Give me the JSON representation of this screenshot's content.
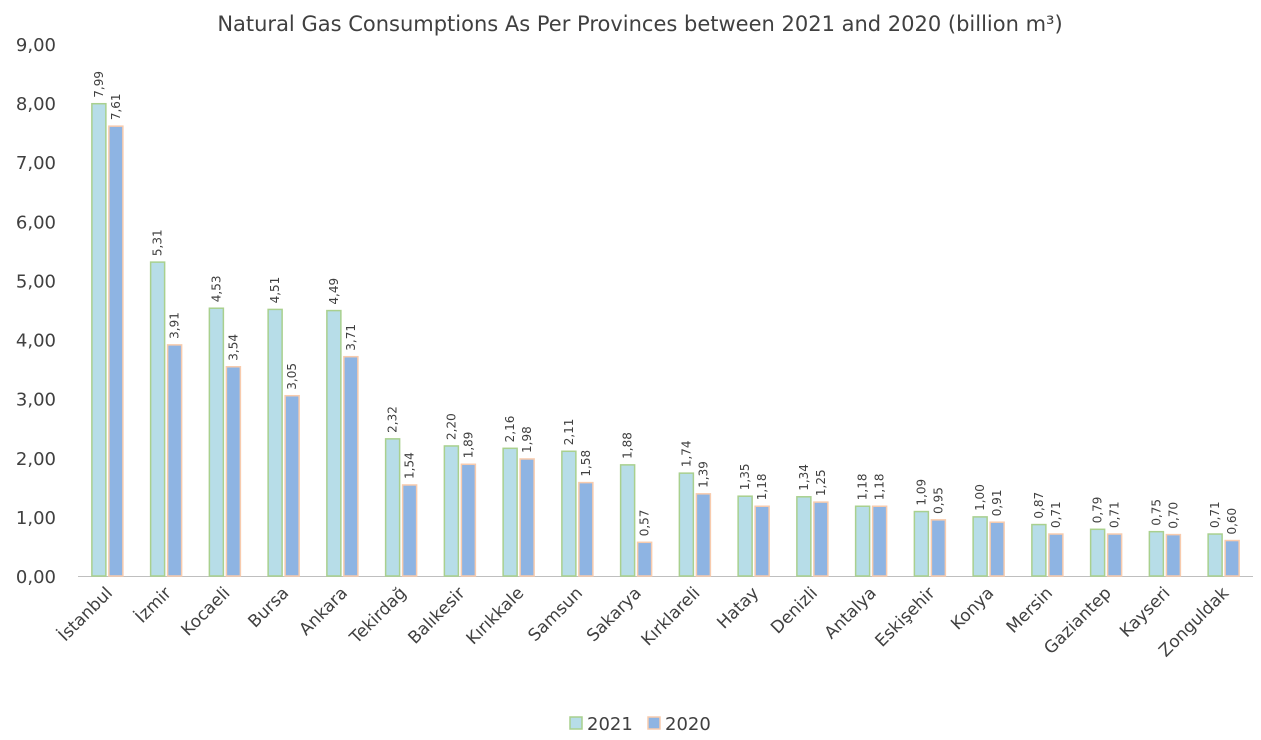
{
  "chart_data": {
    "type": "bar",
    "title": "Natural Gas Consumptions As Per Provinces between 2021 and 2020 (billion m³)",
    "xlabel": "",
    "ylabel": "",
    "ylim": [
      0,
      9
    ],
    "yticks": [
      "0,00",
      "1,00",
      "2,00",
      "3,00",
      "4,00",
      "5,00",
      "6,00",
      "7,00",
      "8,00",
      "9,00"
    ],
    "grid": false,
    "legend_position": "bottom",
    "categories": [
      "İstanbul",
      "İzmir",
      "Kocaeli",
      "Bursa",
      "Ankara",
      "Tekirdağ",
      "Balıkesir",
      "Kırıkkale",
      "Samsun",
      "Sakarya",
      "Kırklareli",
      "Hatay",
      "Denizli",
      "Antalya",
      "Eskişehir",
      "Konya",
      "Mersin",
      "Gaziantep",
      "Kayseri",
      "Zonguldak"
    ],
    "series": [
      {
        "name": "2021",
        "fill": "#b7dde8",
        "stroke": "#a9d08e",
        "values": [
          7.99,
          5.31,
          4.53,
          4.51,
          4.49,
          2.32,
          2.2,
          2.16,
          2.11,
          1.88,
          1.74,
          1.35,
          1.34,
          1.18,
          1.09,
          1.0,
          0.87,
          0.79,
          0.75,
          0.71
        ],
        "labels": [
          "7,99",
          "5,31",
          "4,53",
          "4,51",
          "4,49",
          "2,32",
          "2,20",
          "2,16",
          "2,11",
          "1,88",
          "1,74",
          "1,35",
          "1,34",
          "1,18",
          "1,09",
          "1,00",
          "0,87",
          "0,79",
          "0,75",
          "0,71"
        ]
      },
      {
        "name": "2020",
        "fill": "#8eb4e3",
        "stroke": "#f8cbad",
        "values": [
          7.61,
          3.91,
          3.54,
          3.05,
          3.71,
          1.54,
          1.89,
          1.98,
          1.58,
          0.57,
          1.39,
          1.18,
          1.25,
          1.18,
          0.95,
          0.91,
          0.71,
          0.71,
          0.7,
          0.6
        ],
        "labels": [
          "7,61",
          "3,91",
          "3,54",
          "3,05",
          "3,71",
          "1,54",
          "1,89",
          "1,98",
          "1,58",
          "0,57",
          "1,39",
          "1,18",
          "1,25",
          "1,18",
          "0,95",
          "0,91",
          "0,71",
          "0,71",
          "0,70",
          "0,60"
        ]
      }
    ],
    "colors": {
      "axis": "#bfbfbf",
      "text": "#404040"
    }
  }
}
